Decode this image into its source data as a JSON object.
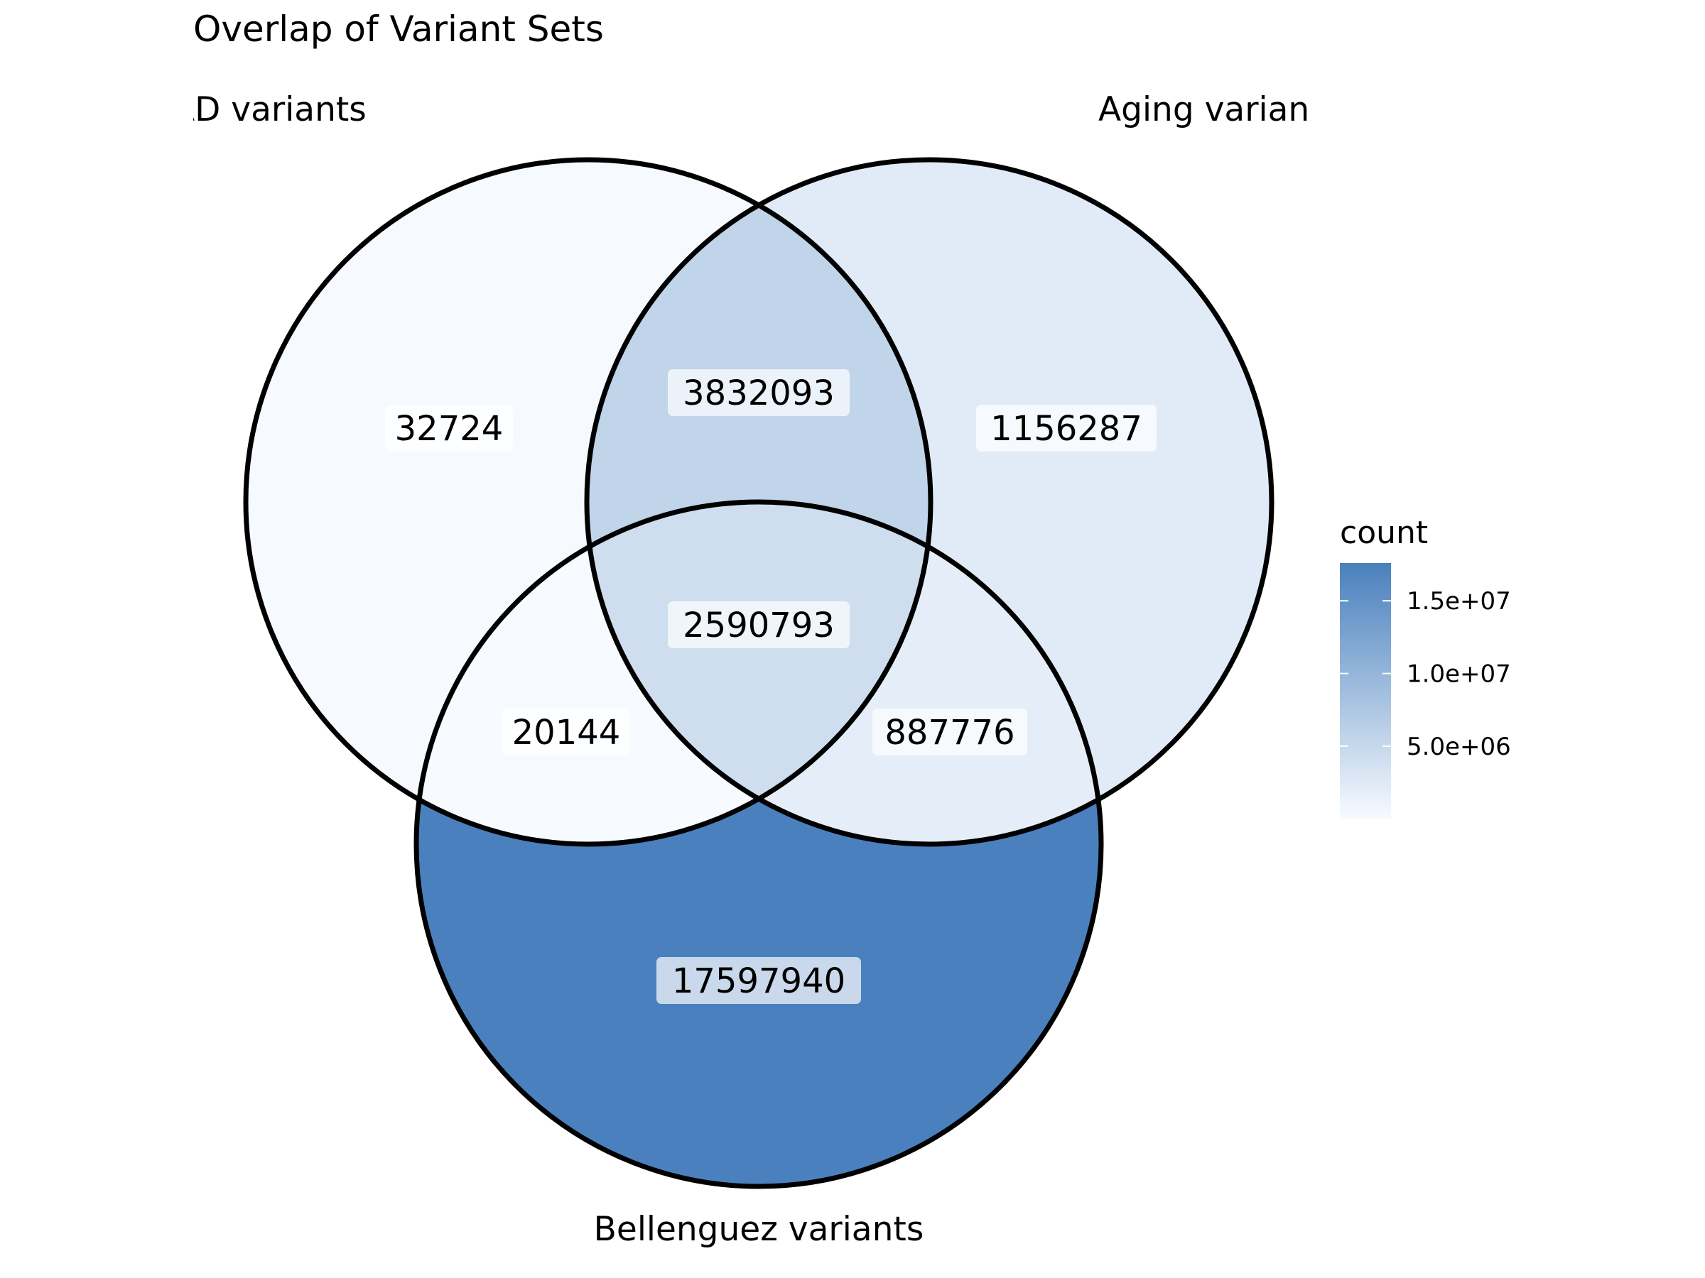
{
  "title": "Overlap of Variant Sets",
  "sets": {
    "left": "AD variants",
    "right": "Aging varian",
    "bottom": "Bellenguez variants"
  },
  "regions": [
    {
      "id": "left-only",
      "sets": [
        "left"
      ],
      "count": "32724",
      "value": 32724
    },
    {
      "id": "right-only",
      "sets": [
        "right"
      ],
      "count": "1156287",
      "value": 1156287
    },
    {
      "id": "bottom-only",
      "sets": [
        "bottom"
      ],
      "count": "17597940",
      "value": 17597940
    },
    {
      "id": "left-right",
      "sets": [
        "left",
        "right"
      ],
      "count": "3832093",
      "value": 3832093
    },
    {
      "id": "left-bottom",
      "sets": [
        "left",
        "bottom"
      ],
      "count": "20144",
      "value": 20144
    },
    {
      "id": "right-bottom",
      "sets": [
        "right",
        "bottom"
      ],
      "count": "887776",
      "value": 887776
    },
    {
      "id": "all-three",
      "sets": [
        "left",
        "right",
        "bottom"
      ],
      "count": "2590793",
      "value": 2590793
    }
  ],
  "legend": {
    "title": "count",
    "ticks": [
      {
        "label": "1.5e+07",
        "value": 15000000
      },
      {
        "label": "1.0e+07",
        "value": 10000000
      },
      {
        "label": "5.0e+06",
        "value": 5000000
      }
    ],
    "range": [
      20144,
      17597940
    ],
    "color_low": "#f7fbff",
    "color_high": "#4a80bd"
  }
}
